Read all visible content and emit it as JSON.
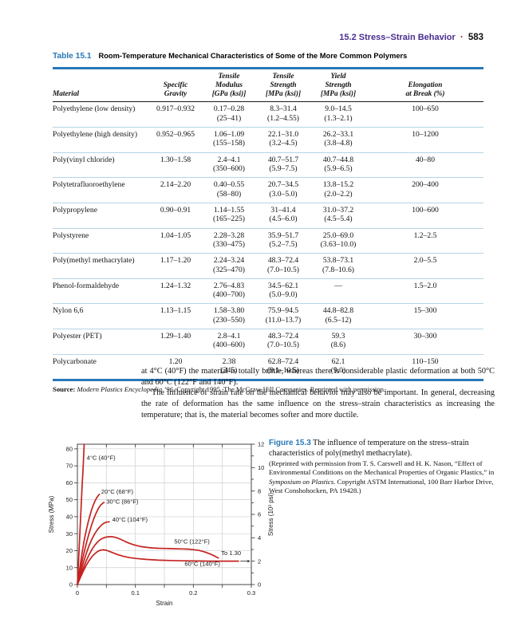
{
  "header": {
    "section_title": "15.2 Stress–Strain Behavior",
    "separator": "·",
    "page_number": "583"
  },
  "table": {
    "label": "Table 15.1",
    "title": "Room-Temperature Mechanical Characteristics of Some of the More Common Polymers",
    "columns": [
      {
        "lines": [
          "Material"
        ]
      },
      {
        "lines": [
          "Specific",
          "Gravity"
        ]
      },
      {
        "lines": [
          "Tensile",
          "Modulus",
          "[GPa (ksi)]"
        ]
      },
      {
        "lines": [
          "Tensile",
          "Strength",
          "[MPa (ksi)]"
        ]
      },
      {
        "lines": [
          "Yield",
          "Strength",
          "[MPa (ksi)]"
        ]
      },
      {
        "lines": [
          "Elongation",
          "at Break (%)"
        ]
      }
    ],
    "rows": [
      {
        "material": "Polyethylene (low density)",
        "specific_gravity": "0.917–0.932",
        "tensile_modulus": [
          "0.17–0.28",
          "(25–41)"
        ],
        "tensile_strength": [
          "8.3–31.4",
          "(1.2–4.55)"
        ],
        "yield_strength": [
          "9.0–14.5",
          "(1.3–2.1)"
        ],
        "elongation": "100–650"
      },
      {
        "material": "Polyethylene (high density)",
        "specific_gravity": "0.952–0.965",
        "tensile_modulus": [
          "1.06–1.09",
          "(155–158)"
        ],
        "tensile_strength": [
          "22.1–31.0",
          "(3.2–4.5)"
        ],
        "yield_strength": [
          "26.2–33.1",
          "(3.8–4.8)"
        ],
        "elongation": "10–1200"
      },
      {
        "material": "Poly(vinyl chloride)",
        "specific_gravity": "1.30–1.58",
        "tensile_modulus": [
          "2.4–4.1",
          "(350–600)"
        ],
        "tensile_strength": [
          "40.7–51.7",
          "(5.9–7.5)"
        ],
        "yield_strength": [
          "40.7–44.8",
          "(5.9–6.5)"
        ],
        "elongation": "40–80"
      },
      {
        "material": "Polytetrafluoroethylene",
        "specific_gravity": "2.14–2.20",
        "tensile_modulus": [
          "0.40–0.55",
          "(58–80)"
        ],
        "tensile_strength": [
          "20.7–34.5",
          "(3.0–5.0)"
        ],
        "yield_strength": [
          "13.8–15.2",
          "(2.0–2.2)"
        ],
        "elongation": "200–400"
      },
      {
        "material": "Polypropylene",
        "specific_gravity": "0.90–0.91",
        "tensile_modulus": [
          "1.14–1.55",
          "(165–225)"
        ],
        "tensile_strength": [
          "31–41.4",
          "(4.5–6.0)"
        ],
        "yield_strength": [
          "31.0–37.2",
          "(4.5–5.4)"
        ],
        "elongation": "100–600"
      },
      {
        "material": "Polystyrene",
        "specific_gravity": "1.04–1.05",
        "tensile_modulus": [
          "2.28–3.28",
          "(330–475)"
        ],
        "tensile_strength": [
          "35.9–51.7",
          "(5.2–7.5)"
        ],
        "yield_strength": [
          "25.0–69.0",
          "(3.63–10.0)"
        ],
        "elongation": "1.2–2.5"
      },
      {
        "material": "Poly(methyl methacrylate)",
        "specific_gravity": "1.17–1.20",
        "tensile_modulus": [
          "2.24–3.24",
          "(325–470)"
        ],
        "tensile_strength": [
          "48.3–72.4",
          "(7.0–10.5)"
        ],
        "yield_strength": [
          "53.8–73.1",
          "(7.8–10.6)"
        ],
        "elongation": "2.0–5.5"
      },
      {
        "material": "Phenol-formaldehyde",
        "specific_gravity": "1.24–1.32",
        "tensile_modulus": [
          "2.76–4.83",
          "(400–700)"
        ],
        "tensile_strength": [
          "34.5–62.1",
          "(5.0–9.0)"
        ],
        "yield_strength": "—",
        "elongation": "1.5–2.0"
      },
      {
        "material": "Nylon 6,6",
        "specific_gravity": "1.13–1.15",
        "tensile_modulus": [
          "1.58–3.80",
          "(230–550)"
        ],
        "tensile_strength": [
          "75.9–94.5",
          "(11.0–13.7)"
        ],
        "yield_strength": [
          "44.8–82.8",
          "(6.5–12)"
        ],
        "elongation": "15–300"
      },
      {
        "material": "Polyester (PET)",
        "specific_gravity": "1.29–1.40",
        "tensile_modulus": [
          "2.8–4.1",
          "(400–600)"
        ],
        "tensile_strength": [
          "48.3–72.4",
          "(7.0–10.5)"
        ],
        "yield_strength": [
          "59.3",
          "(8.6)"
        ],
        "elongation": "30–300"
      },
      {
        "material": "Polycarbonate",
        "specific_gravity": "1.20",
        "tensile_modulus": [
          "2.38",
          "(345)"
        ],
        "tensile_strength": [
          "62.8–72.4",
          "(9.1–10.5)"
        ],
        "yield_strength": [
          "62.1",
          "(9.0)"
        ],
        "elongation": "110–150"
      }
    ],
    "source": {
      "label": "Source:",
      "italic": " Modern Plastics Encyclopedia ’96.",
      "rest": " Copyright 1995, The McGraw-Hill Companies. Reprinted with permission."
    }
  },
  "body_text": {
    "para1": "at 4°C (40°F) the material is totally brittle, whereas there is considerable plastic deformation at both 50°C and 60°C (122°F and 140°F).",
    "para2": "The influence of strain rate on the mechanical behavior may also be important. In general, decreasing the rate of deformation has the same influence on the stress–strain characteristics as increasing the temperature; that is, the material becomes softer and more ductile."
  },
  "figure": {
    "label": "Figure 15.3",
    "caption": "The influence of temperature on the stress–strain characteristics of poly(methyl methacrylate).",
    "credit_parts": [
      "(Reprinted with permission from T. S. Carswell and H. K. Nason, “Effect of Environmental Conditions on the Mechanical Properties of Organic Plastics,” in ",
      "Symposium on Plastics",
      ". Copyright ASTM International, 100 Barr Harbor Drive, West Conshohocken, PA 19428.)"
    ]
  },
  "chart_data": {
    "type": "line",
    "title": "",
    "xlabel": "Strain",
    "ylabel_left": "Stress (MPa)",
    "ylabel_right": "Stress (10³ psi)",
    "xlim": [
      0,
      0.3
    ],
    "ylim_mpa": [
      0,
      82.74
    ],
    "x_major_ticks": [
      0,
      0.1,
      0.2,
      0.3
    ],
    "x_minor_step": 0.05,
    "left_ticks_mpa": [
      0,
      10,
      20,
      30,
      40,
      50,
      60,
      70,
      80
    ],
    "right_ticks_kpsi": [
      0,
      2,
      4,
      6,
      8,
      10,
      12
    ],
    "right_minor_ticks_kpsi": [
      1,
      3,
      5,
      7,
      9,
      11
    ],
    "kpsi_to_mpa": 6.8948,
    "grid": true,
    "legend_position": "inline-labels",
    "curve_color": "#c4231f",
    "series": [
      {
        "name": "4°C (40°F)",
        "label_pos": [
          0.016,
          73.5
        ],
        "points": [
          [
            0,
            0
          ],
          [
            0.002,
            14
          ],
          [
            0.004,
            28
          ],
          [
            0.006,
            43
          ],
          [
            0.008,
            57
          ],
          [
            0.01,
            70
          ],
          [
            0.0117,
            82.7
          ]
        ]
      },
      {
        "name": "20°C (68°F)",
        "label_pos": [
          0.041,
          53.5
        ],
        "points": [
          [
            0,
            0
          ],
          [
            0.003,
            7
          ],
          [
            0.006,
            14
          ],
          [
            0.009,
            20.5
          ],
          [
            0.012,
            26.5
          ],
          [
            0.015,
            31.5
          ],
          [
            0.018,
            36
          ],
          [
            0.021,
            40
          ],
          [
            0.024,
            43.5
          ],
          [
            0.027,
            46.5
          ],
          [
            0.03,
            49
          ],
          [
            0.033,
            51
          ],
          [
            0.036,
            52.5
          ],
          [
            0.038,
            53.2
          ]
        ]
      },
      {
        "name": "30°C (86°F)",
        "label_pos": [
          0.05,
          47.8
        ],
        "points": [
          [
            0,
            0
          ],
          [
            0.004,
            7
          ],
          [
            0.008,
            13.5
          ],
          [
            0.012,
            19.5
          ],
          [
            0.016,
            25
          ],
          [
            0.02,
            30
          ],
          [
            0.024,
            34.5
          ],
          [
            0.028,
            38.5
          ],
          [
            0.032,
            42
          ],
          [
            0.036,
            44.8
          ],
          [
            0.04,
            46.8
          ],
          [
            0.044,
            48
          ],
          [
            0.046,
            48.4
          ]
        ]
      },
      {
        "name": "40°C (104°F)",
        "label_pos": [
          0.06,
          37.2
        ],
        "points": [
          [
            0,
            0
          ],
          [
            0.005,
            6.5
          ],
          [
            0.01,
            12.5
          ],
          [
            0.015,
            18
          ],
          [
            0.02,
            22.8
          ],
          [
            0.025,
            26.8
          ],
          [
            0.03,
            30
          ],
          [
            0.035,
            32.6
          ],
          [
            0.04,
            34.6
          ],
          [
            0.045,
            36
          ],
          [
            0.05,
            36.8
          ],
          [
            0.055,
            37
          ]
        ]
      },
      {
        "name": "50°C (122°F)",
        "label_pos": [
          0.167,
          24.2
        ],
        "points": [
          [
            0,
            0
          ],
          [
            0.005,
            5
          ],
          [
            0.01,
            9.5
          ],
          [
            0.015,
            13.8
          ],
          [
            0.02,
            17.5
          ],
          [
            0.025,
            20.7
          ],
          [
            0.03,
            23.2
          ],
          [
            0.035,
            25.2
          ],
          [
            0.04,
            26.6
          ],
          [
            0.045,
            27.5
          ],
          [
            0.05,
            28
          ],
          [
            0.055,
            28.2
          ],
          [
            0.06,
            28.2
          ],
          [
            0.065,
            27.9
          ],
          [
            0.07,
            27.3
          ],
          [
            0.075,
            26.6
          ],
          [
            0.08,
            25.8
          ],
          [
            0.085,
            25
          ],
          [
            0.09,
            24.3
          ],
          [
            0.095,
            23.7
          ],
          [
            0.1,
            23.2
          ],
          [
            0.11,
            22.4
          ],
          [
            0.12,
            21.9
          ],
          [
            0.13,
            21.6
          ],
          [
            0.14,
            21.4
          ],
          [
            0.15,
            21.3
          ],
          [
            0.16,
            21.2
          ],
          [
            0.17,
            21.1
          ],
          [
            0.18,
            21.0
          ],
          [
            0.19,
            20.9
          ],
          [
            0.2,
            20.6
          ],
          [
            0.21,
            20.1
          ],
          [
            0.22,
            19.2
          ],
          [
            0.23,
            17.9
          ],
          [
            0.238,
            16.6
          ],
          [
            0.243,
            15.7
          ]
        ]
      },
      {
        "name": "60°C (140°F)",
        "label_pos": [
          0.185,
          11.0
        ],
        "points": [
          [
            0,
            0
          ],
          [
            0.005,
            4
          ],
          [
            0.01,
            7.8
          ],
          [
            0.015,
            11.2
          ],
          [
            0.02,
            14
          ],
          [
            0.025,
            16.4
          ],
          [
            0.03,
            18.2
          ],
          [
            0.035,
            19.5
          ],
          [
            0.04,
            20.3
          ],
          [
            0.045,
            20.5
          ],
          [
            0.05,
            20.2
          ],
          [
            0.055,
            19.6
          ],
          [
            0.06,
            18.9
          ],
          [
            0.07,
            17.6
          ],
          [
            0.08,
            16.6
          ],
          [
            0.09,
            15.9
          ],
          [
            0.1,
            15.4
          ],
          [
            0.12,
            14.8
          ],
          [
            0.14,
            14.4
          ],
          [
            0.16,
            14.2
          ],
          [
            0.18,
            14.0
          ],
          [
            0.2,
            13.9
          ],
          [
            0.23,
            13.8
          ],
          [
            0.26,
            13.8
          ],
          [
            0.278,
            13.8
          ]
        ]
      }
    ],
    "annotation": {
      "text": "To 1.30",
      "text_pos": [
        0.248,
        17.3
      ],
      "arrow_from": [
        0.281,
        13.8
      ],
      "arrow_to": [
        0.298,
        13.8
      ]
    }
  }
}
